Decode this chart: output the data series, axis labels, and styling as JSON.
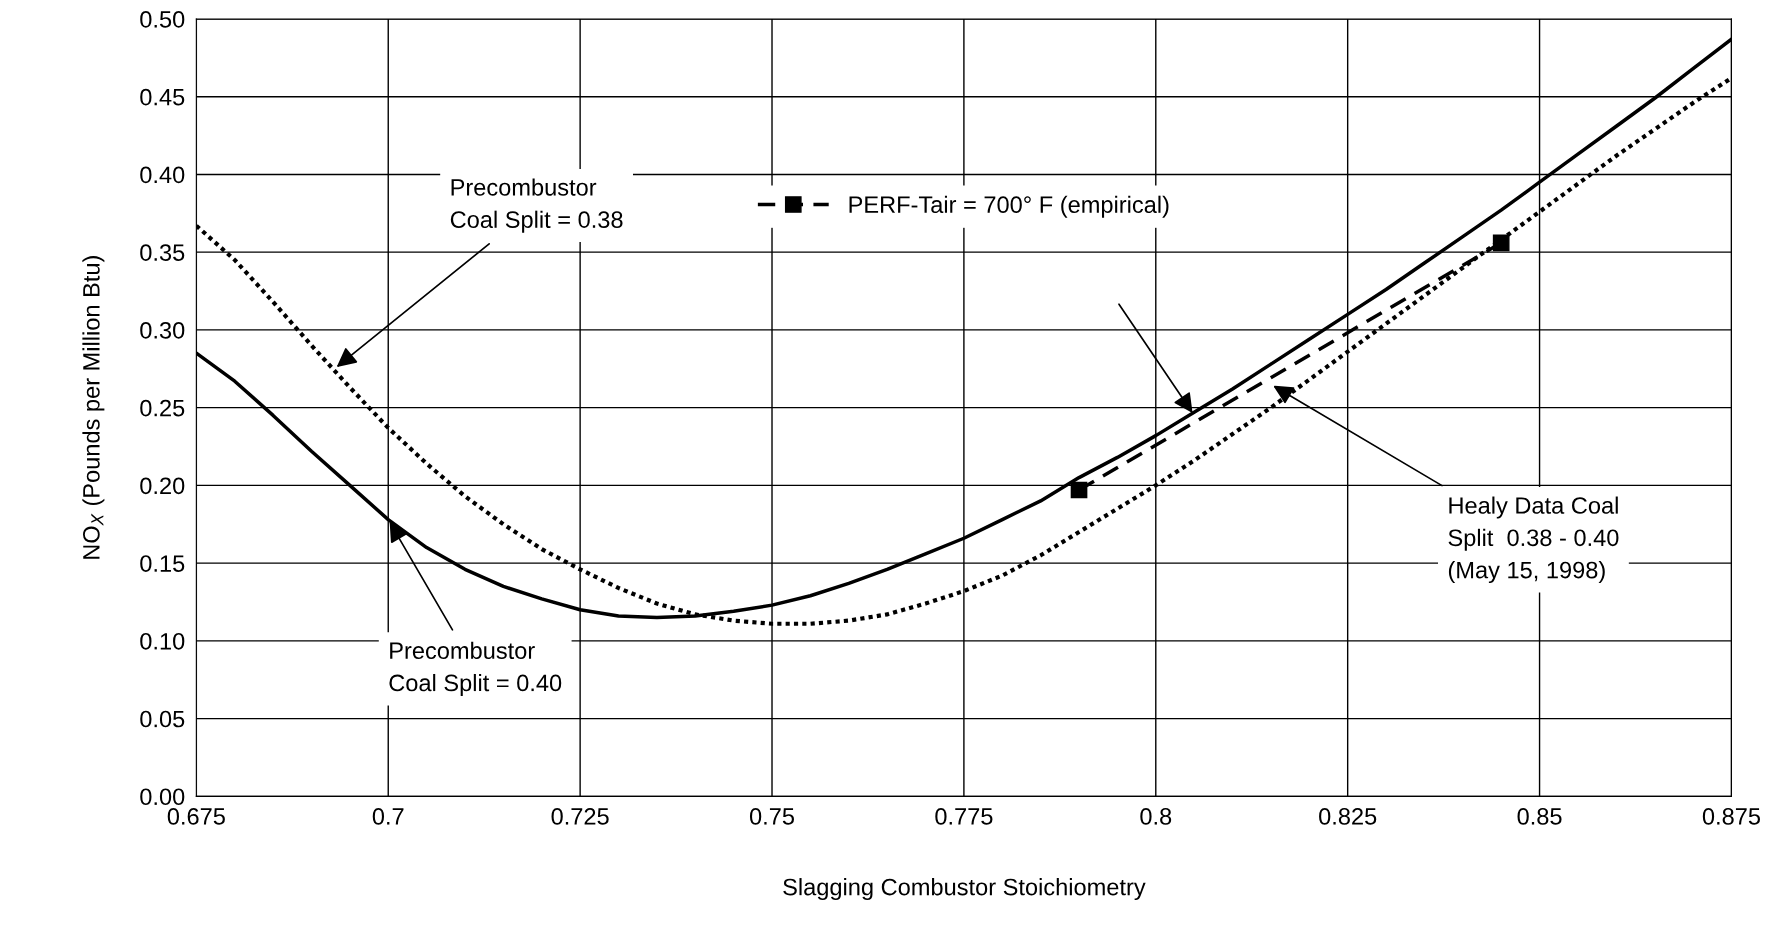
{
  "chart_data": {
    "type": "line",
    "xlabel": "Slagging Combustor Stoichiometry",
    "ylabel": "NO$_{X}$ (Pounds per Million Btu)",
    "xlim": [
      0.675,
      0.875
    ],
    "xticks": [
      0.675,
      0.7,
      0.725,
      0.75,
      0.775,
      0.8,
      0.825,
      0.85,
      0.875
    ],
    "ylim": [
      0,
      0.5
    ],
    "yticks": [
      {
        "value": 0,
        "label": "0.00"
      },
      {
        "value": 0.05,
        "label": "0.05"
      },
      {
        "value": 0.1,
        "label": "0.10"
      },
      {
        "value": 0.15,
        "label": "0.15"
      },
      {
        "value": 0.2,
        "label": "0.20"
      },
      {
        "value": 0.25,
        "label": "0.25"
      },
      {
        "value": 0.3,
        "label": "0.30"
      },
      {
        "value": 0.35,
        "label": "0.35"
      },
      {
        "value": 0.4,
        "label": "0.40"
      },
      {
        "value": 0.45,
        "label": "0.45"
      },
      {
        "value": 0.5,
        "label": "0.50"
      }
    ],
    "grid": true,
    "legend": "top",
    "x": [
      0.675,
      0.68,
      0.685,
      0.69,
      0.695,
      0.7,
      0.705,
      0.71,
      0.715,
      0.72,
      0.725,
      0.73,
      0.735,
      0.74,
      0.745,
      0.75,
      0.755,
      0.76,
      0.765,
      0.77,
      0.775,
      0.78,
      0.785,
      0.79,
      0.795,
      0.8,
      0.805,
      0.81,
      0.815,
      0.82,
      0.825,
      0.83,
      0.835,
      0.84,
      0.845,
      0.85,
      0.855,
      0.86,
      0.865,
      0.87,
      0.875
    ],
    "series": [
      {
        "color": "#000000",
        "line_style": "solid",
        "marker": "none",
        "values": [
          0.285,
          0.267,
          0.245,
          0.222,
          0.2,
          0.178,
          0.16,
          0.146,
          0.135,
          0.127,
          0.12,
          0.116,
          0.115,
          0.116,
          0.119,
          0.123,
          0.129,
          0.137,
          0.146,
          0.156,
          0.166,
          0.178,
          0.19,
          0.205,
          0.218,
          0.232,
          0.247,
          0.262,
          0.278,
          0.294,
          0.31,
          0.326,
          0.343,
          0.36,
          0.377,
          0.395,
          0.413,
          0.431,
          0.449,
          0.468,
          0.487
        ]
      },
      {
        "color": "#000000",
        "line_style": "dotted",
        "marker": "none",
        "values": [
          0.367,
          0.345,
          0.318,
          0.29,
          0.263,
          0.237,
          0.214,
          0.193,
          0.175,
          0.159,
          0.146,
          0.134,
          0.124,
          0.117,
          0.113,
          0.111,
          0.111,
          0.113,
          0.117,
          0.124,
          0.132,
          0.142,
          0.155,
          0.17,
          0.185,
          0.2,
          0.216,
          0.233,
          0.25,
          0.268,
          0.286,
          0.304,
          0.322,
          0.34,
          0.358,
          0.376,
          0.394,
          0.412,
          0.429,
          0.446,
          0.462
        ]
      },
      {
        "name": "PERF-Tair = 700° F (empirical)",
        "color": "#000000",
        "line_style": "dashed",
        "marker": "square",
        "x": [
          0.79,
          0.845
        ],
        "values": [
          0.197,
          0.356
        ]
      }
    ],
    "annotations": [
      {
        "text": "Precombustor\nCoal Split = 0.38",
        "x": 0.693,
        "y": 0.275
      },
      {
        "text": "Precombustor\nCoal Split = 0.40",
        "x": 0.7,
        "y": 0.178
      },
      {
        "text": "Healy Data Coal\nSplit  0.38 - 0.40\n(May 15, 1998)",
        "x": 0.815,
        "y": 0.265
      }
    ]
  }
}
